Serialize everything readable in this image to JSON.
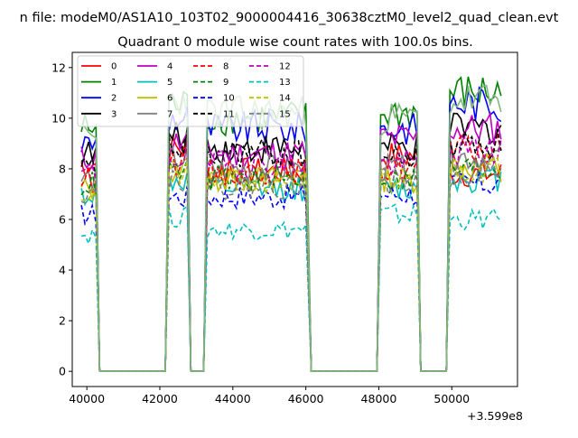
{
  "window": {
    "supertitle": "n file: modeM0/AS1A10_103T02_9000004416_30638cztM0_level2_quad_clean.evt",
    "title": "Quadrant 0 module wise count rates with 100.0s bins."
  },
  "chart_data": {
    "type": "line",
    "title": "Quadrant 0 module wise count rates with 100.0s bins.",
    "xlabel": "",
    "ylabel": "",
    "x_offset_label": "+3.599e8",
    "xlim": [
      39600,
      51800
    ],
    "ylim": [
      -0.6,
      12.6
    ],
    "xticks": [
      40000,
      42000,
      44000,
      46000,
      48000,
      50000
    ],
    "xtick_labels": [
      "40000",
      "42000",
      "44000",
      "46000",
      "48000",
      "50000"
    ],
    "yticks": [
      0,
      2,
      4,
      6,
      8,
      10,
      12
    ],
    "ytick_labels": [
      "0",
      "2",
      "4",
      "6",
      "8",
      "10",
      "12"
    ],
    "grid": false,
    "legend_position": "top-left",
    "legend_columns": 4,
    "segments": [
      {
        "x_start": 39850,
        "x_end": 40250
      },
      {
        "x_start": 42250,
        "x_end": 42750
      },
      {
        "x_start": 43300,
        "x_end": 46050
      },
      {
        "x_start": 48050,
        "x_end": 49050
      },
      {
        "x_start": 49950,
        "x_end": 51350
      }
    ],
    "gap_level": 0,
    "series": [
      {
        "name": "0",
        "color": "#ff0000",
        "dash": "solid",
        "levels": [
          8.2,
          8.8,
          7.9,
          8.5,
          7.8
        ]
      },
      {
        "name": "1",
        "color": "#008000",
        "dash": "solid",
        "levels": [
          9.6,
          10.5,
          10.0,
          10.2,
          11.0
        ]
      },
      {
        "name": "2",
        "color": "#0000ff",
        "dash": "solid",
        "levels": [
          9.0,
          10.0,
          9.6,
          9.6,
          10.6
        ]
      },
      {
        "name": "3",
        "color": "#000000",
        "dash": "solid",
        "levels": [
          8.6,
          9.2,
          8.8,
          8.8,
          9.6
        ]
      },
      {
        "name": "4",
        "color": "#bf00bf",
        "dash": "solid",
        "levels": [
          8.4,
          9.0,
          8.6,
          9.2,
          9.6
        ]
      },
      {
        "name": "5",
        "color": "#00bfbf",
        "dash": "solid",
        "levels": [
          7.0,
          7.5,
          7.2,
          7.2,
          7.6
        ]
      },
      {
        "name": "6",
        "color": "#bfbf00",
        "dash": "solid",
        "levels": [
          7.2,
          8.0,
          7.6,
          7.6,
          8.1
        ]
      },
      {
        "name": "7",
        "color": "#808080",
        "dash": "solid",
        "levels": [
          7.6,
          8.4,
          8.0,
          8.0,
          8.5
        ]
      },
      {
        "name": "8",
        "color": "#ff0000",
        "dash": "dashed",
        "levels": [
          7.6,
          8.3,
          7.9,
          8.0,
          8.7
        ]
      },
      {
        "name": "9",
        "color": "#008000",
        "dash": "dashed",
        "levels": [
          7.4,
          7.9,
          7.6,
          7.6,
          8.0
        ]
      },
      {
        "name": "10",
        "color": "#0000ff",
        "dash": "dashed",
        "levels": [
          6.2,
          6.9,
          6.9,
          7.0,
          7.4
        ]
      },
      {
        "name": "11",
        "color": "#000000",
        "dash": "dashed",
        "levels": [
          8.0,
          8.8,
          8.6,
          8.4,
          9.0
        ]
      },
      {
        "name": "12",
        "color": "#bf00bf",
        "dash": "dashed",
        "levels": [
          7.8,
          8.5,
          8.2,
          8.2,
          8.7
        ]
      },
      {
        "name": "13",
        "color": "#00bfbf",
        "dash": "dashed",
        "levels": [
          5.4,
          6.1,
          5.6,
          6.2,
          6.0
        ]
      },
      {
        "name": "14",
        "color": "#bfbf00",
        "dash": "dashed",
        "levels": [
          7.0,
          7.8,
          7.5,
          7.4,
          8.0
        ]
      },
      {
        "name": "15",
        "color": "#808080",
        "dash": "dashed",
        "levels": [
          7.1,
          7.6,
          7.3,
          7.5,
          7.9
        ]
      },
      {
        "name": "",
        "color": "#7fb77f",
        "dash": "solid",
        "levels": [
          9.2,
          10.7,
          10.2,
          10.0,
          10.7
        ]
      }
    ]
  }
}
